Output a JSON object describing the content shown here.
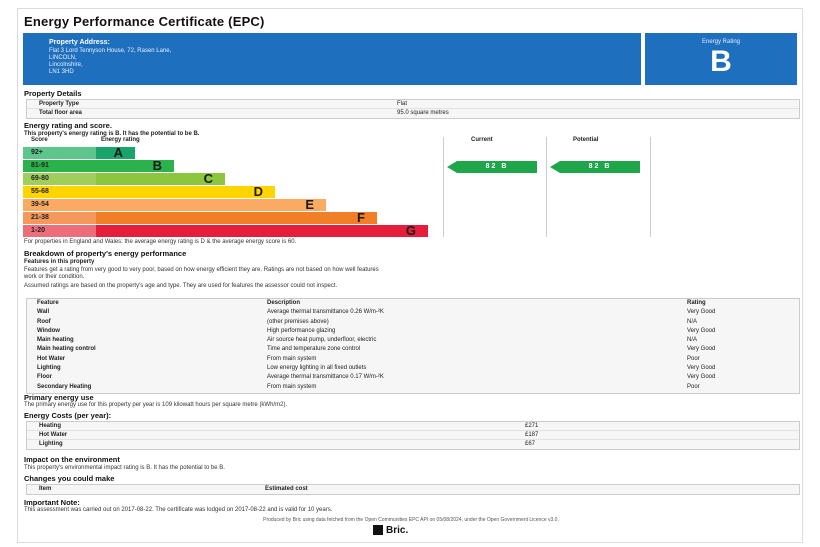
{
  "title": "Energy Performance Certificate (EPC)",
  "property": {
    "label": "Property Address:",
    "lines": [
      "Flat 3 Lord Tennyson House, 72, Rasen Lane,",
      "LINCOLN,",
      "Lincolnshire,",
      "LN1 3HD"
    ]
  },
  "rating_box": {
    "label": "Energy Rating",
    "value": "B"
  },
  "details": {
    "heading": "Property Details",
    "rows": [
      {
        "k": "Property Type",
        "v": "Flat"
      },
      {
        "k": "Total floor area",
        "v": "95.0 square metres"
      }
    ]
  },
  "energy": {
    "heading": "Energy rating and score.",
    "summary": "This property's energy rating is B. It has the potential to be B.",
    "headers": {
      "score": "Score",
      "rating": "Energy rating",
      "current": "Current",
      "potential": "Potential"
    },
    "bands": [
      {
        "score": "92+",
        "letter": "A",
        "color": "#1aa36b",
        "scorebg": "#5ec58c",
        "frac": 0.1
      },
      {
        "score": "81-91",
        "letter": "B",
        "color": "#2bb24c",
        "scorebg": "#2bb24c",
        "frac": 0.2
      },
      {
        "score": "69-80",
        "letter": "C",
        "color": "#8cc63f",
        "scorebg": "#9fcf5a",
        "frac": 0.33
      },
      {
        "score": "55-68",
        "letter": "D",
        "color": "#ffd500",
        "scorebg": "#ffd500",
        "frac": 0.46
      },
      {
        "score": "39-54",
        "letter": "E",
        "color": "#fbaa64",
        "scorebg": "#fbaa64",
        "frac": 0.59
      },
      {
        "score": "21-38",
        "letter": "F",
        "color": "#f07f27",
        "scorebg": "#f4995b",
        "frac": 0.72
      },
      {
        "score": "1-20",
        "letter": "G",
        "color": "#e51e3c",
        "scorebg": "#ee6d7b",
        "frac": 0.85
      }
    ],
    "current": {
      "score": "82",
      "letter": "B"
    },
    "potential": {
      "score": "82",
      "letter": "B"
    },
    "note": "For properties in England and Wales: the average energy rating is D & the average energy score is 60."
  },
  "breakdown": {
    "heading": "Breakdown of property's energy performance",
    "sub": "Features in this property",
    "p1a": "Features get a rating from very good to very poor, based on how energy efficient they are. Ratings are not based on how well features",
    "p1b": "work or their condition.",
    "p2": "Assumed ratings are based on the property's age and type. They are used for features the assessor could not inspect.",
    "headers": {
      "feature": "Feature",
      "description": "Description",
      "rating": "Rating"
    },
    "rows": [
      {
        "f": "Wall",
        "d": "Average thermal transmittance 0.26 W/m-²K",
        "r": "Very Good"
      },
      {
        "f": "Roof",
        "d": "(other premises above)",
        "r": "N/A"
      },
      {
        "f": "Window",
        "d": "High performance glazing",
        "r": "Very Good"
      },
      {
        "f": "Main heating",
        "d": "Air source heat pump, underfloor, electric",
        "r": "N/A"
      },
      {
        "f": "Main heating control",
        "d": "Time and temperature zone control",
        "r": "Very Good"
      },
      {
        "f": "Hot Water",
        "d": "From main system",
        "r": "Poor"
      },
      {
        "f": "Lighting",
        "d": "Low energy lighting in all fixed outlets",
        "r": "Very Good"
      },
      {
        "f": "Floor",
        "d": "Average thermal transmittance 0.17 W/m-²K",
        "r": "Very Good"
      },
      {
        "f": "Secondary Heating",
        "d": "From main system",
        "r": "Poor"
      }
    ]
  },
  "primary": {
    "heading": "Primary energy use",
    "text": "The primary energy use for this property per year is 109 kilowatt hours per square metre (kWh/m2)."
  },
  "costs": {
    "heading": "Energy Costs (per year):",
    "rows": [
      {
        "k": "Heating",
        "v": "£271"
      },
      {
        "k": "Hot Water",
        "v": "£187"
      },
      {
        "k": "Lighting",
        "v": "£67"
      }
    ]
  },
  "impact": {
    "heading": "Impact on the environment",
    "text": "This property's environmental impact rating is B. It has the potential to be B."
  },
  "changes": {
    "heading": "Changes you could make",
    "item": "Item",
    "cost": "Estimated cost"
  },
  "important": {
    "heading": "Important Note:",
    "text": "This assessment was carried out on 2017-08-22. The certificate was lodged on 2017-08-22 and is valid for 10 years."
  },
  "footer": "Produced by Bric using data fetched from the Open Communities EPC API on 05/08/2024, under the Open Government Licence v3.0.",
  "brand": "Bric."
}
